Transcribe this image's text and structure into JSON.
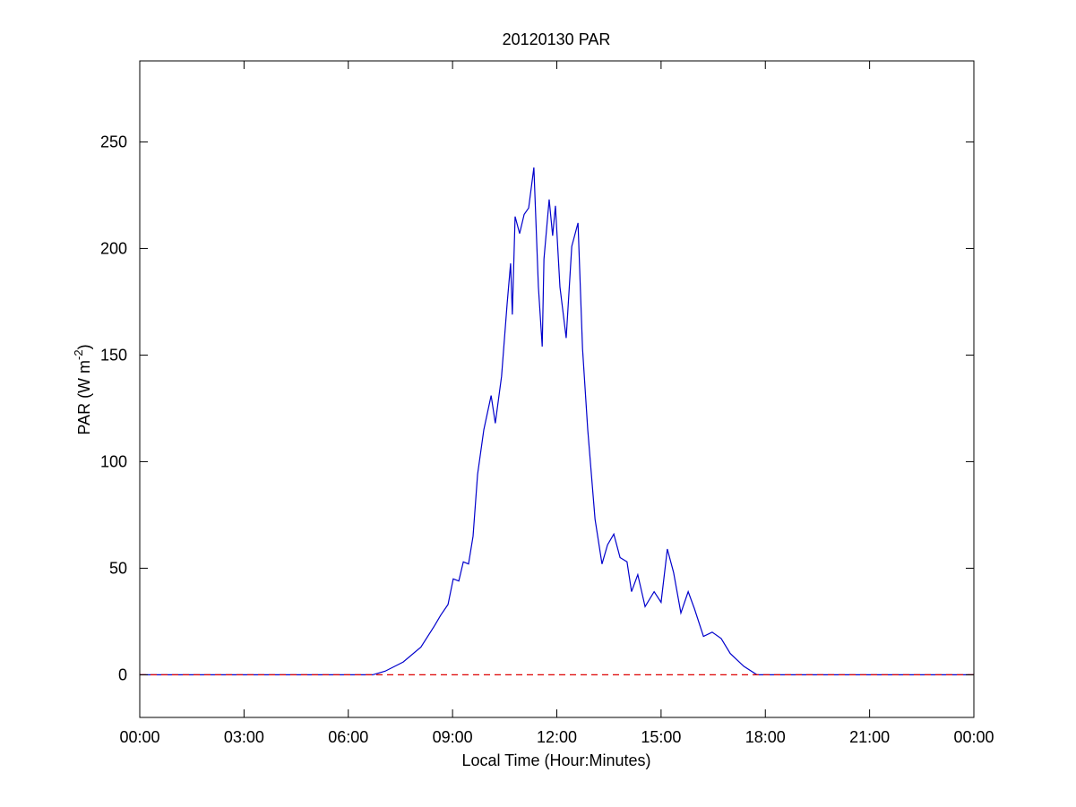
{
  "chart_data": {
    "type": "line",
    "title": "20120130 PAR",
    "xlabel": "Local Time (Hour:Minutes)",
    "ylabel": {
      "text": "PAR (W m",
      "superscript": "-2",
      "suffix": ")"
    },
    "xlim": [
      0,
      24
    ],
    "xticks": [
      {
        "value": 0,
        "label": "00:00"
      },
      {
        "value": 3,
        "label": "03:00"
      },
      {
        "value": 6,
        "label": "06:00"
      },
      {
        "value": 9,
        "label": "09:00"
      },
      {
        "value": 12,
        "label": "12:00"
      },
      {
        "value": 15,
        "label": "15:00"
      },
      {
        "value": 18,
        "label": "18:00"
      },
      {
        "value": 21,
        "label": "21:00"
      },
      {
        "value": 24,
        "label": "00:00"
      }
    ],
    "ylim": [
      -20,
      288
    ],
    "yticks": [
      0,
      50,
      100,
      150,
      200,
      250
    ],
    "grid": false,
    "series": [
      {
        "color": "#0000cc",
        "dash": false,
        "x": [
          0,
          6.7,
          7.06,
          7.58,
          8.09,
          8.48,
          8.66,
          8.87,
          9.02,
          9.18,
          9.31,
          9.46,
          9.59,
          9.72,
          9.9,
          10.11,
          10.23,
          10.41,
          10.57,
          10.67,
          10.72,
          10.8,
          10.93,
          11.06,
          11.19,
          11.34,
          11.47,
          11.58,
          11.63,
          11.78,
          11.88,
          11.96,
          12.09,
          12.27,
          12.43,
          12.61,
          12.74,
          12.89,
          13.1,
          13.3,
          13.46,
          13.64,
          13.82,
          14.02,
          14.15,
          14.33,
          14.54,
          14.8,
          15.0,
          15.18,
          15.36,
          15.57,
          15.78,
          15.96,
          16.22,
          16.47,
          16.73,
          16.99,
          17.38,
          17.76,
          18.0,
          24
        ],
        "values": [
          0,
          0,
          1.7,
          6,
          13,
          23,
          28,
          33,
          45,
          44,
          53,
          52,
          65,
          94,
          115,
          131,
          118,
          140,
          174,
          193,
          169,
          215,
          207,
          216,
          219,
          238,
          182,
          154,
          195,
          223,
          206,
          220,
          182,
          158,
          201,
          212,
          153,
          115,
          73,
          52,
          61,
          66,
          55,
          53,
          39,
          47,
          32,
          39,
          34,
          59,
          48,
          29,
          39,
          31,
          18,
          20,
          17,
          10,
          4,
          0,
          0,
          0
        ]
      },
      {
        "color": "#dd0000",
        "dash": true,
        "x": [
          0,
          24
        ],
        "values": [
          0,
          0
        ]
      }
    ]
  }
}
